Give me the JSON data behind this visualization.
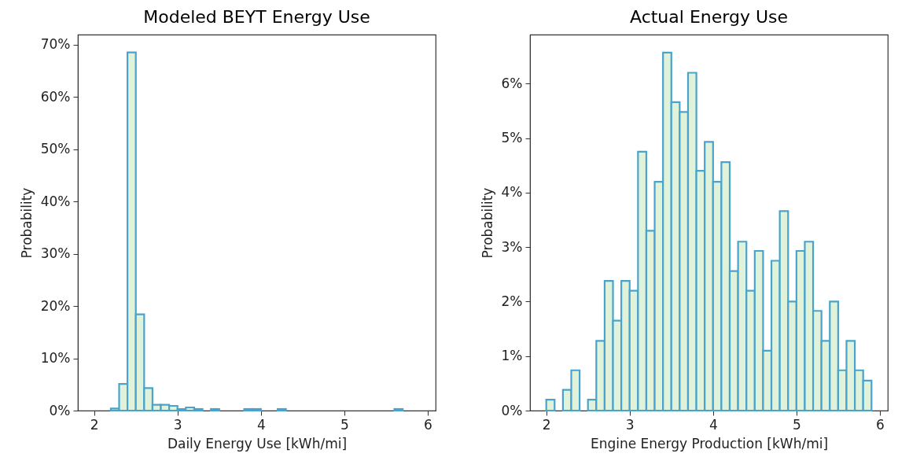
{
  "chart_data": [
    {
      "type": "histogram",
      "title": "Modeled BEYT Energy Use",
      "xlabel": "Daily Energy Use [kWh/mi]",
      "ylabel": "Probability",
      "bins": [
        2.0,
        2.1,
        2.2,
        2.3,
        2.4,
        2.5,
        2.6,
        2.7,
        2.8,
        2.9,
        3.0,
        3.1,
        3.2,
        3.3,
        3.4,
        3.5,
        3.6,
        3.7,
        3.8,
        3.9,
        4.0,
        4.1,
        4.2,
        4.3,
        4.4,
        4.5,
        4.6,
        4.7,
        4.8,
        4.9,
        5.0,
        5.1,
        5.2,
        5.3,
        5.4,
        5.5,
        5.6,
        5.7,
        5.8,
        5.9
      ],
      "values": [
        0,
        0,
        0.4,
        5.1,
        68.5,
        18.4,
        4.3,
        1.1,
        1.1,
        0.9,
        0.3,
        0.6,
        0.3,
        0,
        0.3,
        0,
        0,
        0,
        0.3,
        0.3,
        0,
        0,
        0.3,
        0,
        0,
        0,
        0,
        0,
        0,
        0,
        0,
        0,
        0,
        0,
        0,
        0,
        0.3,
        0,
        0
      ],
      "color": "#e0f2da",
      "xlim": [
        1.805,
        6.095
      ],
      "xticks": [
        2,
        3,
        4,
        5,
        6
      ],
      "ylim": [
        0,
        71.9
      ],
      "yticks": [
        {
          "value": 0,
          "label": "0%"
        },
        {
          "value": 10,
          "label": "10%"
        },
        {
          "value": 20,
          "label": "20%"
        },
        {
          "value": 30,
          "label": "30%"
        },
        {
          "value": 40,
          "label": "40%"
        },
        {
          "value": 50,
          "label": "50%"
        },
        {
          "value": 60,
          "label": "60%"
        },
        {
          "value": 70,
          "label": "70%"
        }
      ],
      "grid": false
    },
    {
      "type": "histogram",
      "title": "Actual Energy Use",
      "xlabel": "Engine Energy Production [kWh/mi]",
      "ylabel": "Probability",
      "bins": [
        2.0,
        2.1,
        2.2,
        2.3,
        2.4,
        2.5,
        2.6,
        2.7,
        2.8,
        2.9,
        3.0,
        3.1,
        3.2,
        3.3,
        3.4,
        3.5,
        3.6,
        3.7,
        3.8,
        3.9,
        4.0,
        4.1,
        4.2,
        4.3,
        4.4,
        4.5,
        4.6,
        4.7,
        4.8,
        4.9,
        5.0,
        5.1,
        5.2,
        5.3,
        5.4,
        5.5,
        5.6,
        5.7,
        5.8,
        5.9
      ],
      "values": [
        0.2,
        0,
        0.38,
        0.74,
        0,
        0.2,
        1.28,
        2.38,
        1.65,
        2.38,
        2.2,
        4.75,
        3.3,
        4.2,
        6.57,
        5.66,
        5.48,
        6.2,
        4.4,
        4.93,
        4.2,
        4.56,
        2.56,
        3.1,
        2.2,
        2.93,
        1.1,
        2.75,
        3.66,
        2.0,
        2.93,
        3.1,
        1.83,
        1.28,
        2.0,
        0.74,
        1.28,
        0.74,
        0.55
      ],
      "color": "#e0f2da",
      "xlim": [
        1.805,
        6.095
      ],
      "xticks": [
        2,
        3,
        4,
        5,
        6
      ],
      "ylim": [
        0,
        6.9
      ],
      "yticks": [
        {
          "value": 0,
          "label": "0%"
        },
        {
          "value": 1,
          "label": "1%"
        },
        {
          "value": 2,
          "label": "2%"
        },
        {
          "value": 3,
          "label": "3%"
        },
        {
          "value": 4,
          "label": "4%"
        },
        {
          "value": 5,
          "label": "5%"
        },
        {
          "value": 6,
          "label": "6%"
        }
      ],
      "grid": false
    }
  ]
}
